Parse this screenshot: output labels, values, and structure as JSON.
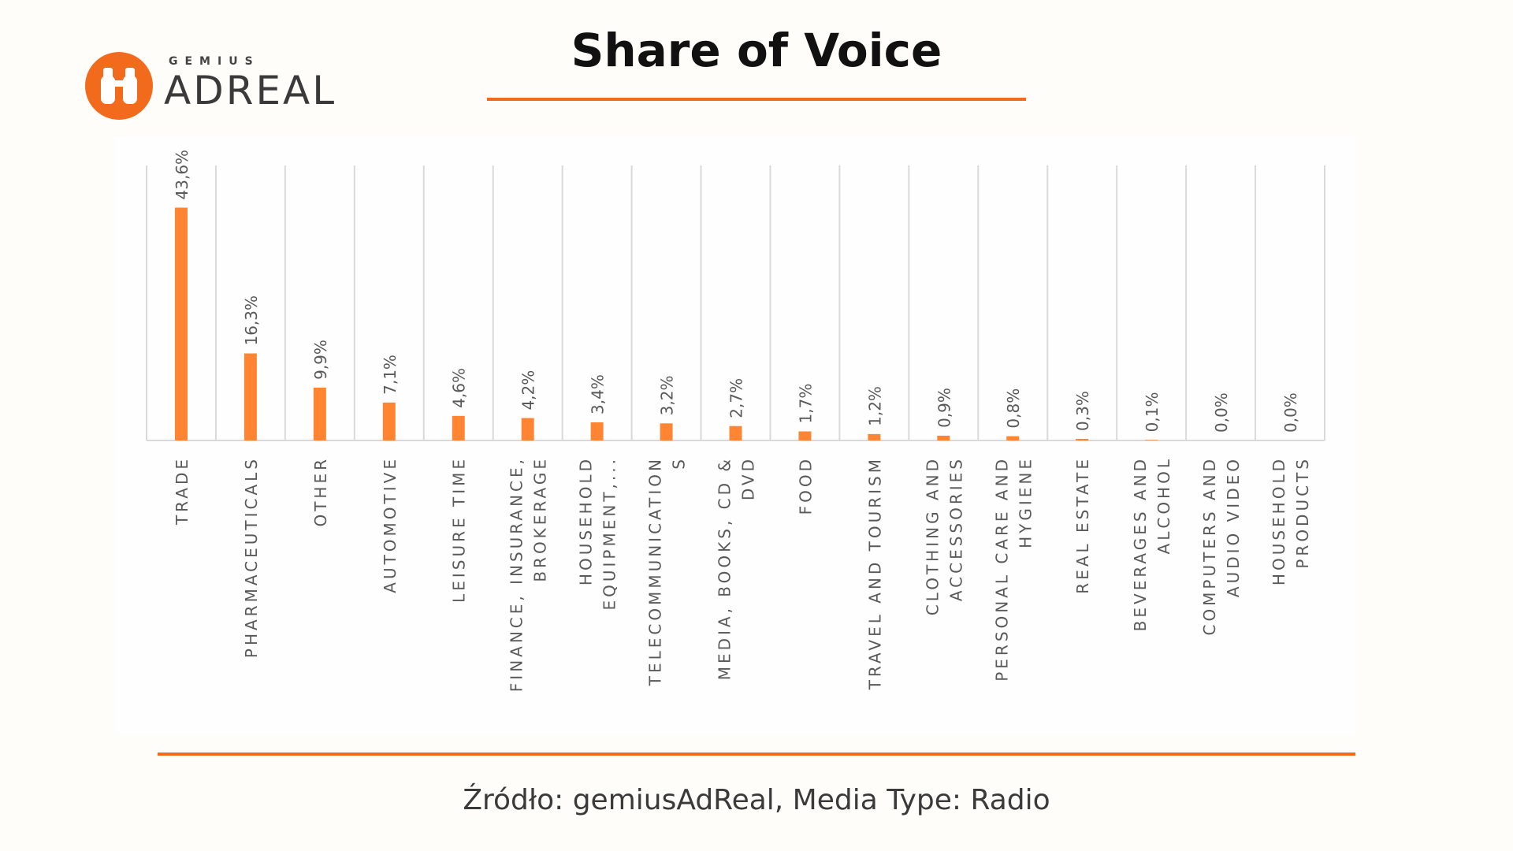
{
  "logo": {
    "brand": "GEMIUS",
    "name": "ADREAL",
    "icon": "binoculars-icon",
    "color": "#f26b1d"
  },
  "title": "Share of Voice",
  "source": "Źródło: gemiusAdReal, Media Type: Radio",
  "colors": {
    "accent": "#f26b1d",
    "bar": "#ff8533",
    "grid": "#d9d9d9",
    "label": "#595959"
  },
  "chart_data": {
    "type": "bar",
    "title": "",
    "xlabel": "",
    "ylabel": "",
    "ylim": [
      0,
      45
    ],
    "grid": true,
    "legend": "none",
    "categories": [
      [
        "TRADE"
      ],
      [
        "PHARMACEUTICALS"
      ],
      [
        "OTHER"
      ],
      [
        "AUTOMOTIVE"
      ],
      [
        "LEISURE TIME"
      ],
      [
        "FINANCE, INSURANCE,",
        "BROKERAGE"
      ],
      [
        "HOUSEHOLD",
        "EQUIPMENT,..."
      ],
      [
        "TELECOMMUNICATION",
        "S"
      ],
      [
        "MEDIA, BOOKS, CD &",
        "DVD"
      ],
      [
        "FOOD"
      ],
      [
        "TRAVEL AND TOURISM"
      ],
      [
        "CLOTHING AND",
        "ACCESSORIES"
      ],
      [
        "PERSONAL CARE AND",
        "HYGIENE"
      ],
      [
        "REAL ESTATE"
      ],
      [
        "BEVERAGES AND",
        "ALCOHOL"
      ],
      [
        "COMPUTERS AND",
        "AUDIO VIDEO"
      ],
      [
        "HOUSEHOLD",
        "PRODUCTS"
      ]
    ],
    "values": [
      43.6,
      16.3,
      9.9,
      7.1,
      4.6,
      4.2,
      3.4,
      3.2,
      2.7,
      1.7,
      1.2,
      0.9,
      0.8,
      0.3,
      0.1,
      0.0,
      0.0
    ],
    "value_labels": [
      "43,6%",
      "16,3%",
      "9,9%",
      "7,1%",
      "4,6%",
      "4,2%",
      "3,4%",
      "3,2%",
      "2,7%",
      "1,7%",
      "1,2%",
      "0,9%",
      "0,8%",
      "0,3%",
      "0,1%",
      "0,0%",
      "0,0%"
    ]
  }
}
